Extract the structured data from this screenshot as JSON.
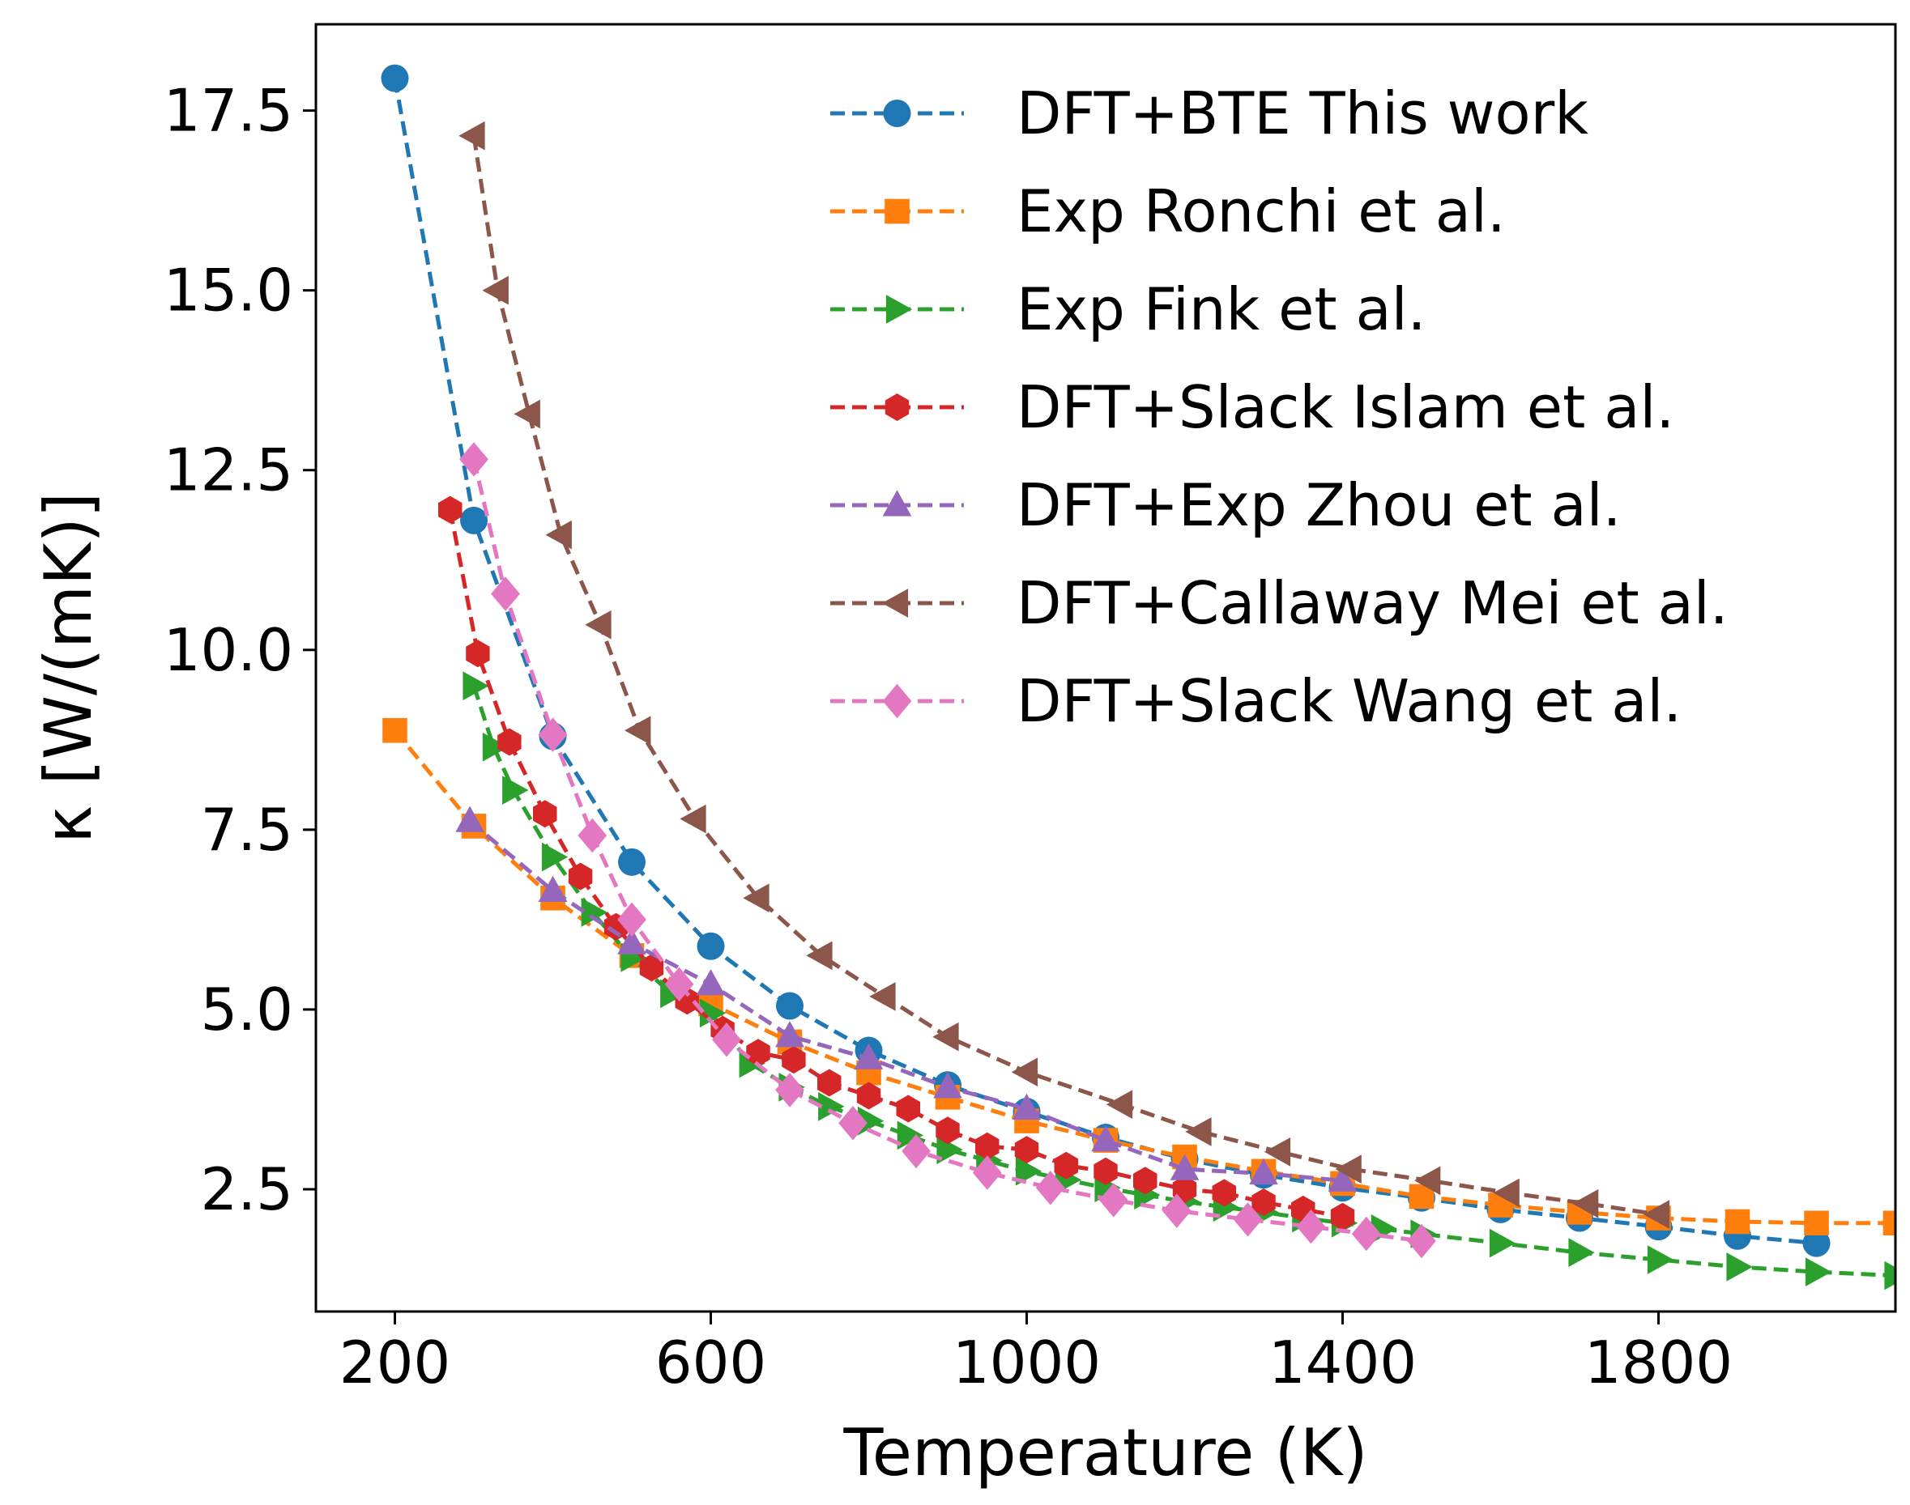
{
  "chart_data": {
    "type": "line",
    "title": "",
    "xlabel": "Temperature (K)",
    "ylabel": "κ [W/(mK)]",
    "xlim": [
      100,
      2100
    ],
    "ylim": [
      0.8,
      18.7
    ],
    "xticks": [
      200,
      600,
      1000,
      1400,
      1800
    ],
    "xtick_labels": [
      "200",
      "600",
      "1000",
      "1400",
      "1800"
    ],
    "yticks": [
      2.5,
      5.0,
      7.5,
      10.0,
      12.5,
      15.0,
      17.5
    ],
    "ytick_labels": [
      "2.5",
      "5.0",
      "7.5",
      "10.0",
      "12.5",
      "15.0",
      "17.5"
    ],
    "grid": false,
    "legend_position": "top-right",
    "series": [
      {
        "name": "DFT+BTE This work",
        "color": "#1f77b4",
        "marker": "circle",
        "x": [
          200,
          300,
          400,
          500,
          600,
          700,
          800,
          900,
          1000,
          1100,
          1200,
          1300,
          1400,
          1500,
          1600,
          1700,
          1800,
          1900,
          2000
        ],
        "y": [
          17.95,
          11.8,
          8.8,
          7.05,
          5.88,
          5.05,
          4.43,
          3.95,
          3.58,
          3.22,
          2.92,
          2.7,
          2.52,
          2.38,
          2.22,
          2.1,
          1.98,
          1.85,
          1.75
        ]
      },
      {
        "name": "Exp Ronchi et al.",
        "color": "#ff7f0e",
        "marker": "square",
        "x": [
          200,
          300,
          400,
          500,
          600,
          700,
          800,
          900,
          1000,
          1100,
          1200,
          1300,
          1400,
          1500,
          1600,
          1700,
          1800,
          1900,
          2000,
          2100
        ],
        "y": [
          8.88,
          7.55,
          6.55,
          5.75,
          5.08,
          4.55,
          4.12,
          3.78,
          3.45,
          3.18,
          2.95,
          2.75,
          2.58,
          2.4,
          2.28,
          2.18,
          2.1,
          2.05,
          2.03,
          2.03
        ]
      },
      {
        "name": "Exp Fink et al.",
        "color": "#2ca02c",
        "marker": "triangle-right",
        "x": [
          300,
          325,
          350,
          400,
          450,
          500,
          550,
          600,
          650,
          700,
          750,
          800,
          850,
          900,
          950,
          1000,
          1050,
          1100,
          1150,
          1200,
          1250,
          1300,
          1350,
          1400,
          1450,
          1500,
          1600,
          1700,
          1800,
          1900,
          2000,
          2100
        ],
        "y": [
          9.5,
          8.65,
          8.05,
          7.12,
          6.35,
          5.72,
          5.22,
          4.95,
          4.25,
          3.92,
          3.65,
          3.45,
          3.25,
          3.05,
          2.9,
          2.75,
          2.63,
          2.52,
          2.42,
          2.33,
          2.25,
          2.18,
          2.1,
          2.03,
          1.95,
          1.88,
          1.75,
          1.62,
          1.52,
          1.42,
          1.35,
          1.3
        ]
      },
      {
        "name": "DFT+Slack Islam et al.",
        "color": "#d62728",
        "marker": "hexagon",
        "x": [
          270,
          305,
          345,
          390,
          435,
          480,
          525,
          570,
          615,
          660,
          705,
          750,
          800,
          850,
          900,
          950,
          1000,
          1050,
          1100,
          1150,
          1200,
          1250,
          1300,
          1350,
          1400
        ],
        "y": [
          11.95,
          9.95,
          8.72,
          7.72,
          6.85,
          6.15,
          5.58,
          5.12,
          4.72,
          4.4,
          4.3,
          3.98,
          3.8,
          3.62,
          3.32,
          3.1,
          3.05,
          2.83,
          2.75,
          2.62,
          2.5,
          2.45,
          2.32,
          2.22,
          2.12
        ]
      },
      {
        "name": "DFT+Exp Zhou et al.",
        "color": "#9467bd",
        "marker": "triangle-up",
        "x": [
          295,
          400,
          500,
          600,
          700,
          800,
          900,
          1000,
          1100,
          1200,
          1300,
          1400
        ],
        "y": [
          7.62,
          6.65,
          5.92,
          5.35,
          4.63,
          4.32,
          3.92,
          3.62,
          3.18,
          2.78,
          2.72,
          2.62
        ]
      },
      {
        "name": "DFT+Callaway Mei et al.",
        "color": "#8c564b",
        "marker": "triangle-left",
        "x": [
          300,
          330,
          370,
          410,
          460,
          510,
          580,
          660,
          740,
          820,
          900,
          1000,
          1120,
          1220,
          1320,
          1410,
          1510,
          1610,
          1710,
          1800
        ],
        "y": [
          17.15,
          15.0,
          13.28,
          11.6,
          10.35,
          8.88,
          7.65,
          6.55,
          5.75,
          5.18,
          4.62,
          4.13,
          3.68,
          3.3,
          3.02,
          2.78,
          2.62,
          2.45,
          2.3,
          2.15
        ]
      },
      {
        "name": "DFT+Slack Wang et al.",
        "color": "#e377c2",
        "marker": "diamond",
        "x": [
          300,
          340,
          400,
          450,
          500,
          560,
          620,
          700,
          780,
          860,
          950,
          1030,
          1110,
          1190,
          1280,
          1360,
          1430,
          1500
        ],
        "y": [
          12.65,
          10.78,
          8.82,
          7.42,
          6.25,
          5.35,
          4.58,
          3.88,
          3.42,
          3.03,
          2.73,
          2.52,
          2.35,
          2.2,
          2.08,
          1.98,
          1.88,
          1.78
        ]
      }
    ]
  }
}
